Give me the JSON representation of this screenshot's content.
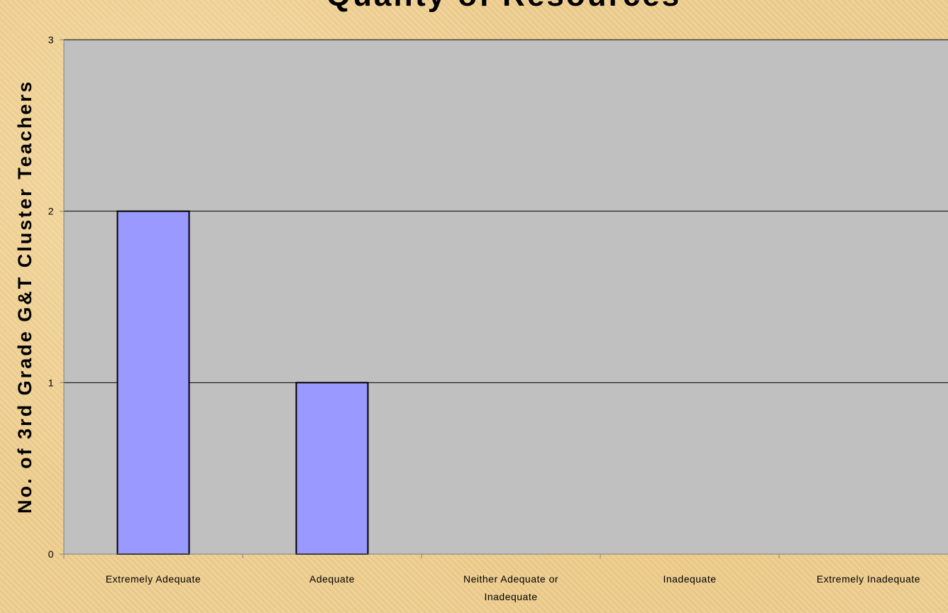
{
  "chart_data": {
    "type": "bar",
    "title": "Quality of Resources",
    "ylabel": "No. of  3rd Grade G&T Cluster Teachers",
    "xlabel": "",
    "categories": [
      "Extremely Adequate",
      "Adequate",
      "Neither Adequate or Inadequate",
      "Inadequate",
      "Extremely Inadequate"
    ],
    "category_lines": [
      [
        "Extremely Adequate"
      ],
      [
        "Adequate"
      ],
      [
        "Neither Adequate or",
        "Inadequate"
      ],
      [
        "Inadequate"
      ],
      [
        "Extremely Inadequate"
      ]
    ],
    "values": [
      2,
      1,
      0,
      0,
      0
    ],
    "ylim": [
      0,
      3
    ],
    "yticks": [
      "0",
      "1",
      "2",
      "3"
    ],
    "grid": true,
    "legend": "none",
    "colors": {
      "bar": "#9999ff",
      "plot_area": "#c0c0c0",
      "gridline": "#000000",
      "axis": "#808080"
    }
  }
}
